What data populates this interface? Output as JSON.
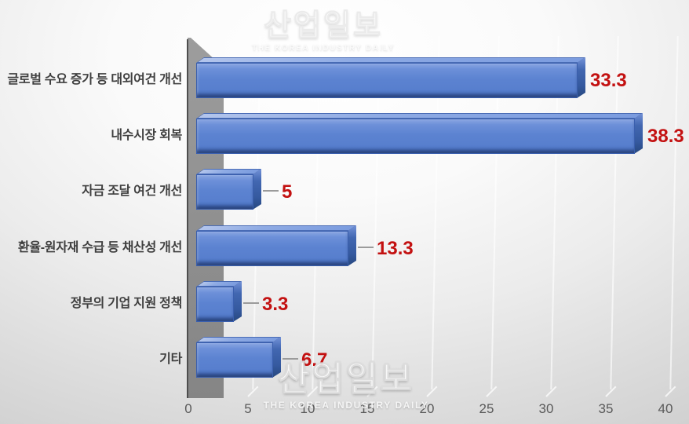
{
  "chart_data": {
    "type": "bar",
    "orientation": "horizontal",
    "title": "",
    "categories": [
      "글로벌 수요 증가 등 대외여건 개선",
      "내수시장 회복",
      "자금 조달 여건 개선",
      "환율-원자재 수급 등 채산성 개선",
      "정부의 기업 지원 정책",
      "기타"
    ],
    "values": [
      33.3,
      38.3,
      5,
      13.3,
      3.3,
      6.7
    ],
    "value_labels": [
      "33.3",
      "38.3",
      "5",
      "13.3",
      "3.3",
      "6.7"
    ],
    "callout_lines": [
      false,
      false,
      true,
      true,
      true,
      true
    ],
    "xlim": [
      0,
      40
    ],
    "x_ticks": [
      "0",
      "5",
      "10",
      "15",
      "20",
      "25",
      "30",
      "35",
      "40"
    ],
    "grid": "vertical",
    "legend": "none",
    "style_3d": true,
    "colors": {
      "bar_front": "#5c83d1",
      "bar_top": "#8fabe4",
      "bar_side": "#35599f",
      "bar_border": "#3a5fae",
      "value_label": "#c31111",
      "category_label": "#3f3f3f",
      "axis_label": "#5a5a5a",
      "wall": "#8f8f8f",
      "background_edge": "#c7c7c7",
      "background_center": "#ffffff"
    }
  },
  "watermark": {
    "title": "산업일보",
    "subtitle": "THE KOREA INDUSTRY DAILY"
  }
}
